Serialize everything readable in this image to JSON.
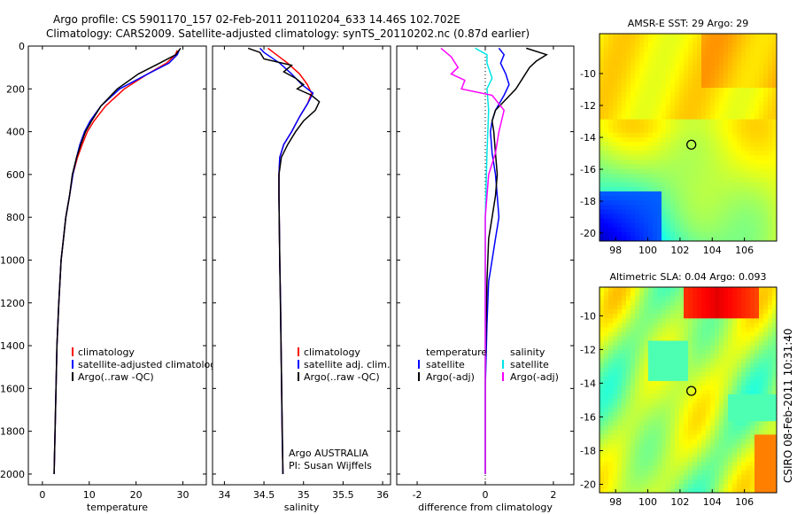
{
  "header": {
    "line1": "Argo profile: CS 5901170_157 02-Feb-2011 20110204_633 14.46S 102.702E",
    "line2": "Climatology: CARS2009. Satellite-adjusted climatology: synTS_20110202.nc (0.87d earlier)"
  },
  "footer": {
    "credit": "CSIRO 08-Feb-2011 10:31:40"
  },
  "colors": {
    "climatology": "#ff0000",
    "satellite": "#0000ff",
    "argo": "#000000",
    "satellite_diff": "#00e5e5",
    "argo_diff": "#ff00ff"
  },
  "chart_data": [
    {
      "type": "line",
      "xlabel": "temperature",
      "xlim": [
        -3,
        35
      ],
      "ylim": [
        2050,
        0
      ],
      "xticks": [
        0,
        10,
        20,
        30
      ],
      "yticks": [
        0,
        200,
        400,
        600,
        800,
        1000,
        1200,
        1400,
        1600,
        1800,
        2000
      ],
      "legend": {
        "placement": "lower-right",
        "entries": [
          "climatology",
          "satellite-adjusted climatology",
          "Argo(..raw -QC)"
        ]
      },
      "series": [
        {
          "name": "climatology",
          "color": "#ff0000",
          "x": [
            28.8,
            28.4,
            26.5,
            22.5,
            17.5,
            13.5,
            11.0,
            9.6,
            8.5,
            7.5,
            6.5,
            5.8,
            5.0,
            4.5,
            4.0,
            3.5,
            3.1,
            2.8,
            2.5
          ],
          "y": [
            20,
            40,
            80,
            130,
            200,
            280,
            350,
            400,
            460,
            520,
            600,
            700,
            800,
            900,
            1000,
            1200,
            1400,
            1700,
            2000
          ]
        },
        {
          "name": "satellite-adjusted climatology",
          "color": "#0000ff",
          "x": [
            29.2,
            28.8,
            27.0,
            22.5,
            16.5,
            12.5,
            10.2,
            9.0,
            8.0,
            7.3,
            6.5,
            5.8,
            5.0,
            4.5,
            4.0,
            3.5,
            3.1,
            2.8,
            2.5
          ],
          "y": [
            20,
            40,
            80,
            130,
            200,
            280,
            350,
            400,
            460,
            520,
            600,
            700,
            800,
            900,
            1000,
            1200,
            1400,
            1700,
            2000
          ]
        },
        {
          "name": "Argo(..raw -QC)",
          "color": "#000000",
          "x": [
            29.5,
            28.5,
            25.0,
            20.5,
            16.0,
            12.5,
            10.5,
            9.2,
            8.2,
            7.3,
            6.4,
            5.8,
            5.0,
            4.5,
            4.0,
            3.5,
            3.1,
            2.8,
            2.5
          ],
          "y": [
            10,
            40,
            80,
            130,
            200,
            280,
            350,
            400,
            460,
            520,
            600,
            700,
            800,
            900,
            1000,
            1200,
            1400,
            1700,
            2000
          ]
        }
      ]
    },
    {
      "type": "line",
      "xlabel": "salinity",
      "xlim": [
        33.85,
        36.1
      ],
      "ylim": [
        2050,
        0
      ],
      "xticks": [
        34,
        34.5,
        35,
        35.5,
        36
      ],
      "yticks": [
        0,
        200,
        400,
        600,
        800,
        1000,
        1200,
        1400,
        1600,
        1800,
        2000
      ],
      "legend": {
        "placement": "lower-right",
        "entries": [
          "climatology",
          "satellite adj. clim.",
          "Argo(..raw -QC)"
        ]
      },
      "annotations": [
        "Argo AUSTRALIA",
        "PI: Susan Wijffels"
      ],
      "series": [
        {
          "name": "climatology",
          "color": "#ff0000",
          "x": [
            34.55,
            34.62,
            34.8,
            34.95,
            35.05,
            35.1,
            35.05,
            34.95,
            34.85,
            34.75,
            34.7,
            34.69,
            34.69,
            34.7,
            34.71,
            34.72,
            34.73,
            34.74
          ],
          "y": [
            10,
            30,
            80,
            130,
            180,
            220,
            270,
            330,
            400,
            460,
            520,
            600,
            700,
            1000,
            1200,
            1500,
            1800,
            2000
          ]
        },
        {
          "name": "satellite adj. clim.",
          "color": "#0000ff",
          "x": [
            34.45,
            34.5,
            34.7,
            34.85,
            34.98,
            35.12,
            35.05,
            34.95,
            34.85,
            34.75,
            34.7,
            34.69,
            34.69,
            34.7,
            34.71,
            34.72,
            34.73,
            34.74
          ],
          "y": [
            10,
            30,
            80,
            130,
            180,
            220,
            270,
            330,
            400,
            460,
            520,
            600,
            700,
            1000,
            1200,
            1500,
            1800,
            2000
          ]
        },
        {
          "name": "Argo(..raw -QC)",
          "color": "#000000",
          "x": [
            34.3,
            34.45,
            34.5,
            34.85,
            34.75,
            34.9,
            35.0,
            34.92,
            35.1,
            35.2,
            35.15,
            35.0,
            34.9,
            34.8,
            34.72,
            34.69,
            34.69,
            34.7,
            34.72,
            34.74
          ],
          "y": [
            10,
            30,
            60,
            90,
            120,
            150,
            180,
            200,
            230,
            260,
            300,
            350,
            400,
            460,
            520,
            600,
            700,
            1000,
            1500,
            2000
          ]
        }
      ]
    },
    {
      "type": "line",
      "xlabel": "difference from climatology",
      "xlim": [
        -2.6,
        2.6
      ],
      "ylim": [
        2050,
        0
      ],
      "xticks": [
        -2,
        0,
        2
      ],
      "yticks": [
        0,
        200,
        400,
        600,
        800,
        1000,
        1200,
        1400,
        1600,
        1800,
        2000
      ],
      "legend": {
        "placement": "lower",
        "groups": [
          {
            "title": "temperature",
            "entries": [
              "satellite",
              "Argo(-adj)"
            ]
          },
          {
            "title": "salinity",
            "entries": [
              "satellite",
              "Argo(-adj)"
            ]
          }
        ]
      },
      "series": [
        {
          "name": "temperature satellite",
          "color": "#0000ff",
          "x": [
            0.4,
            0.55,
            0.45,
            0.6,
            0.7,
            0.55,
            0.3,
            0.2,
            0.15,
            0.2,
            0.3,
            0.35,
            0.4,
            0.3,
            0.2,
            0.1,
            0.05,
            0.0,
            0.0
          ],
          "y": [
            10,
            40,
            80,
            130,
            180,
            230,
            300,
            350,
            400,
            500,
            600,
            700,
            800,
            900,
            1000,
            1100,
            1300,
            1600,
            2000
          ]
        },
        {
          "name": "temperature Argo(-adj)",
          "color": "#000000",
          "x": [
            1.2,
            1.8,
            1.5,
            1.3,
            1.1,
            0.9,
            0.6,
            0.3,
            0.2,
            0.25,
            0.3,
            0.35,
            0.3,
            0.2,
            0.1,
            0.05,
            0.0,
            0.0
          ],
          "y": [
            10,
            40,
            70,
            100,
            150,
            200,
            250,
            300,
            350,
            400,
            500,
            600,
            700,
            800,
            900,
            1100,
            1500,
            2000
          ]
        },
        {
          "name": "salinity satellite",
          "color": "#00e5e5",
          "x": [
            -0.3,
            0.05,
            0.05,
            0.2,
            0.05,
            0.1,
            0.05,
            0.0,
            0.0,
            0.0
          ],
          "y": [
            10,
            40,
            80,
            150,
            200,
            300,
            500,
            800,
            1200,
            2000
          ]
        },
        {
          "name": "salinity Argo(-adj)",
          "color": "#ff00ff",
          "x": [
            -1.3,
            -1.0,
            -0.8,
            -1.0,
            -0.6,
            -0.7,
            0.2,
            0.55,
            0.4,
            0.3,
            0.1,
            0.0,
            0.0
          ],
          "y": [
            10,
            50,
            100,
            130,
            160,
            200,
            230,
            300,
            400,
            500,
            600,
            800,
            2000
          ]
        }
      ]
    },
    {
      "type": "heatmap",
      "title": "AMSR-E SST: 29 Argo: 29",
      "xlim": [
        97,
        108
      ],
      "ylim": [
        -20.5,
        -7.5
      ],
      "xticks": [
        98,
        100,
        102,
        104,
        106
      ],
      "yticks": [
        -10,
        -12,
        -14,
        -16,
        -18,
        -20
      ],
      "marker": {
        "lon": 102.702,
        "lat": -14.46
      }
    },
    {
      "type": "heatmap",
      "title": "Altimetric SLA: 0.04 Argo: 0.093",
      "xlim": [
        97,
        108
      ],
      "ylim": [
        -20.5,
        -8.3
      ],
      "xticks": [
        98,
        100,
        102,
        104,
        106
      ],
      "yticks": [
        -10,
        -12,
        -14,
        -16,
        -18,
        -20
      ],
      "marker": {
        "lon": 102.702,
        "lat": -14.46
      }
    }
  ]
}
